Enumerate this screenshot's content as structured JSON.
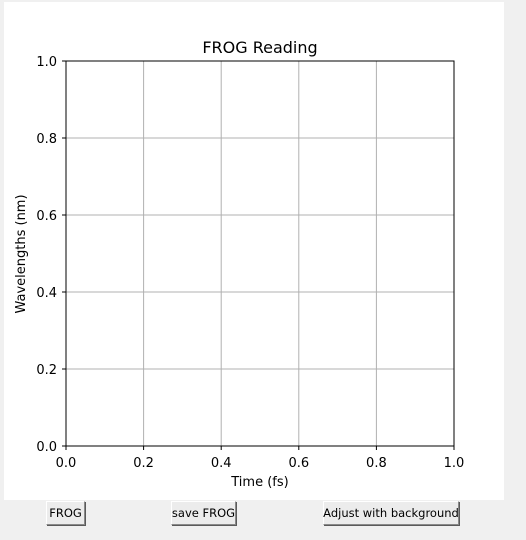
{
  "buttons": {
    "frog": "FROG",
    "save": "save FROG",
    "adjust": "Adjust with background"
  },
  "colors": {
    "grid": "#b0b0b0",
    "axis": "#000000",
    "canvas": "#ffffff",
    "window": "#f0f0f0"
  },
  "chart_data": {
    "type": "line",
    "title": "FROG Reading",
    "xlabel": "Time (fs)",
    "ylabel": "Wavelengths (nm)",
    "xlim": [
      0.0,
      1.0
    ],
    "ylim": [
      0.0,
      1.0
    ],
    "xticks": [
      "0.0",
      "0.2",
      "0.4",
      "0.6",
      "0.8",
      "1.0"
    ],
    "yticks": [
      "0.0",
      "0.2",
      "0.4",
      "0.6",
      "0.8",
      "1.0"
    ],
    "grid": true,
    "series": []
  }
}
